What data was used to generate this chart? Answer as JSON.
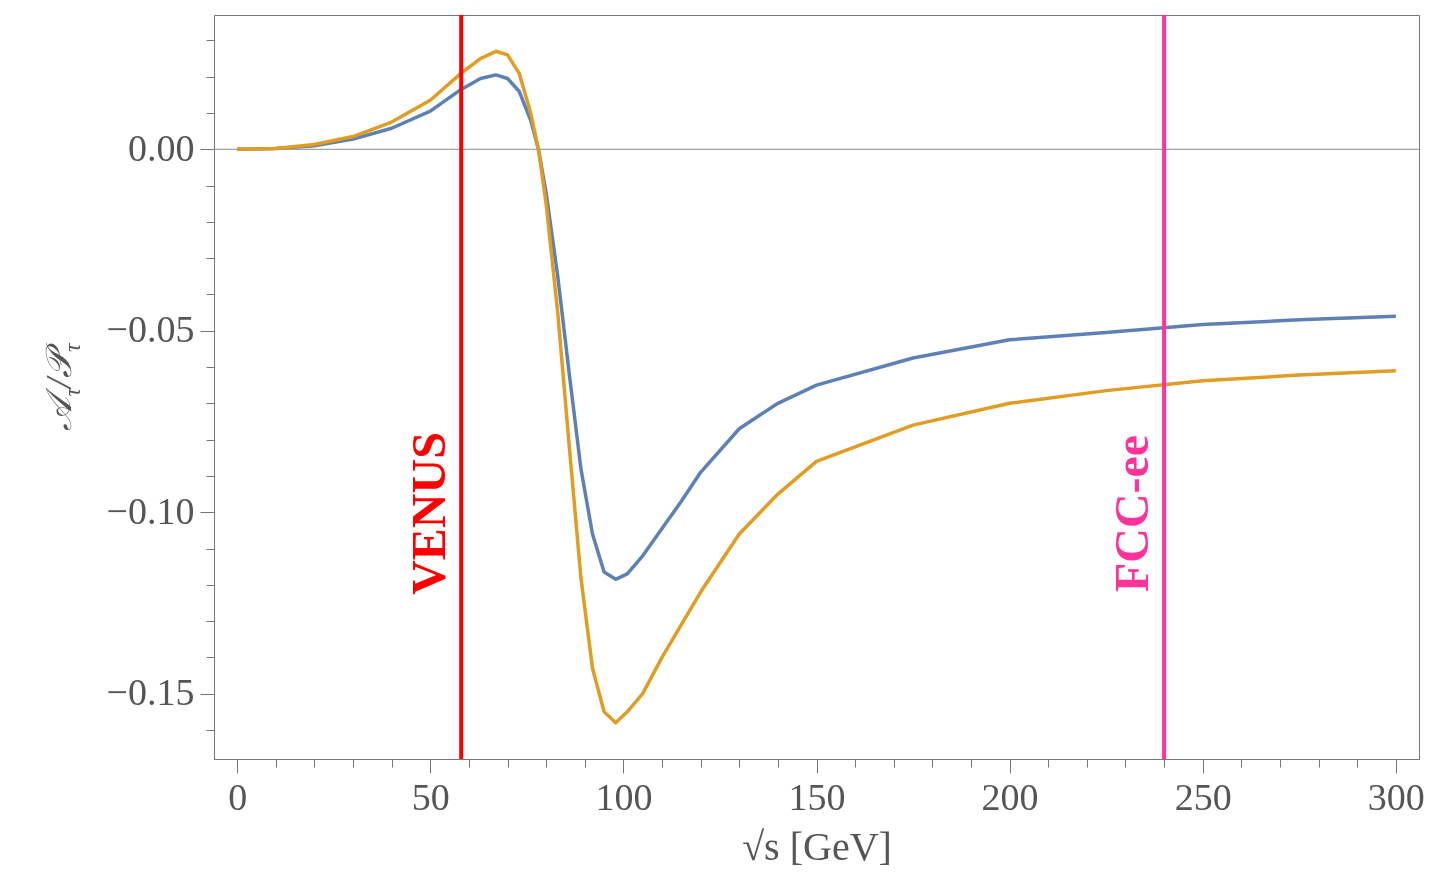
{
  "chart_data": {
    "type": "line",
    "xlabel": "√s  [GeV]",
    "ylabel": "𝒜$_{τ}$/𝒫$_{τ}$",
    "xlim": [
      -6,
      306
    ],
    "ylim": [
      -0.168,
      0.037
    ],
    "xticks": [
      0,
      {
        "value": 10,
        "label": null
      },
      {
        "value": 20,
        "label": null
      },
      {
        "value": 30,
        "label": null
      },
      {
        "value": 40,
        "label": null
      },
      50,
      {
        "value": 60,
        "label": null
      },
      {
        "value": 70,
        "label": null
      },
      {
        "value": 80,
        "label": null
      },
      {
        "value": 90,
        "label": null
      },
      100,
      {
        "value": 110,
        "label": null
      },
      {
        "value": 120,
        "label": null
      },
      {
        "value": 130,
        "label": null
      },
      {
        "value": 140,
        "label": null
      },
      150,
      {
        "value": 160,
        "label": null
      },
      {
        "value": 170,
        "label": null
      },
      {
        "value": 180,
        "label": null
      },
      {
        "value": 190,
        "label": null
      },
      200,
      {
        "value": 210,
        "label": null
      },
      {
        "value": 220,
        "label": null
      },
      {
        "value": 230,
        "label": null
      },
      {
        "value": 240,
        "label": null
      },
      250,
      {
        "value": 260,
        "label": null
      },
      {
        "value": 270,
        "label": null
      },
      {
        "value": 280,
        "label": null
      },
      {
        "value": 290,
        "label": null
      },
      300
    ],
    "yticks": [
      {
        "value": -0.16,
        "label": null
      },
      {
        "value": -0.15,
        "label": "−0.15"
      },
      {
        "value": -0.14,
        "label": null
      },
      {
        "value": -0.13,
        "label": null
      },
      {
        "value": -0.12,
        "label": null
      },
      {
        "value": -0.11,
        "label": null
      },
      {
        "value": -0.1,
        "label": "−0.10"
      },
      {
        "value": -0.09,
        "label": null
      },
      {
        "value": -0.08,
        "label": null
      },
      {
        "value": -0.07,
        "label": null
      },
      {
        "value": -0.06,
        "label": null
      },
      {
        "value": -0.05,
        "label": "−0.05"
      },
      {
        "value": -0.04,
        "label": null
      },
      {
        "value": -0.03,
        "label": null
      },
      {
        "value": -0.02,
        "label": null
      },
      {
        "value": -0.01,
        "label": null
      },
      {
        "value": 0,
        "label": "0.00"
      },
      {
        "value": 0.01,
        "label": null
      },
      {
        "value": 0.02,
        "label": null
      },
      {
        "value": 0.03,
        "label": null
      }
    ],
    "x": [
      0,
      10,
      20,
      30,
      40,
      50,
      58,
      63,
      67,
      70,
      73,
      76,
      78,
      80,
      83,
      86,
      89,
      92,
      95,
      98,
      101,
      105,
      110,
      115,
      120,
      130,
      140,
      150,
      175,
      200,
      225,
      250,
      275,
      300
    ],
    "series": [
      {
        "color": "#5e81b5",
        "values": [
          0,
          0.0002,
          0.001,
          0.0028,
          0.0058,
          0.0105,
          0.0165,
          0.0195,
          0.0205,
          0.0195,
          0.016,
          0.008,
          0,
          -0.012,
          -0.035,
          -0.062,
          -0.088,
          -0.106,
          -0.1165,
          -0.1185,
          -0.117,
          -0.112,
          -0.1045,
          -0.097,
          -0.089,
          -0.077,
          -0.07,
          -0.065,
          -0.0575,
          -0.0525,
          -0.0505,
          -0.0483,
          -0.047,
          -0.046
        ]
      },
      {
        "color": "#e19c24",
        "values": [
          0,
          0.0002,
          0.0013,
          0.0035,
          0.0075,
          0.0135,
          0.021,
          0.025,
          0.027,
          0.026,
          0.021,
          0.01,
          0,
          -0.015,
          -0.045,
          -0.082,
          -0.118,
          -0.143,
          -0.155,
          -0.158,
          -0.155,
          -0.15,
          -0.14,
          -0.131,
          -0.122,
          -0.106,
          -0.095,
          -0.086,
          -0.076,
          -0.07,
          -0.0665,
          -0.0638,
          -0.0622,
          -0.061
        ]
      }
    ],
    "ref_lines": [
      {
        "axis": "y",
        "value": 0,
        "color": "#8c8c8c"
      },
      {
        "axis": "x",
        "value": 58,
        "label": "VENUS",
        "color": "#ff0000"
      },
      {
        "axis": "x",
        "value": 240,
        "label": "FCC-ee",
        "color": "#ff3399"
      }
    ],
    "grid": false,
    "line_style": "solid",
    "marker": "none"
  }
}
